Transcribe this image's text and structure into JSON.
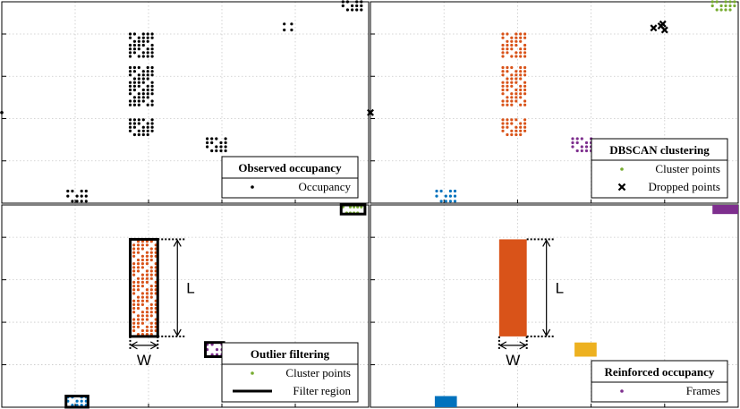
{
  "colors": {
    "black": "#000000",
    "orange": "#d95319",
    "green": "#77ac30",
    "purple": "#7e2f8e",
    "blue": "#0072bd",
    "yellow": "#edb120",
    "grid": "#c8c8c8"
  },
  "chart_data": [
    {
      "type": "scatter",
      "panel": "top-left",
      "legend": {
        "title": "Observed occupancy",
        "placement": "bottom-right",
        "entries": [
          {
            "label": "Occupancy",
            "marker": "dot",
            "color": "black"
          }
        ]
      },
      "xlim": [
        0,
        1
      ],
      "ylim": [
        0,
        1
      ],
      "grid": true,
      "clusters": [
        {
          "color": "black",
          "x": [
            0.35,
            0.41
          ],
          "y": [
            0.34,
            0.84
          ],
          "rows": 28,
          "cols": 6,
          "gaps": [
            [
              0.42,
              0.47
            ],
            [
              0.68,
              0.72
            ]
          ]
        },
        {
          "color": "black",
          "x": [
            0.56,
            0.61
          ],
          "y": [
            0.26,
            0.32
          ],
          "rows": 4,
          "cols": 5
        },
        {
          "color": "black",
          "x": [
            0.18,
            0.23
          ],
          "y": [
            0.01,
            0.06
          ],
          "rows": 3,
          "cols": 5
        },
        {
          "color": "black",
          "x": [
            0.93,
            0.98
          ],
          "y": [
            0.96,
            1.0
          ],
          "rows": 3,
          "cols": 5
        },
        {
          "color": "black",
          "x": [
            0.77,
            0.79
          ],
          "y": [
            0.86,
            0.89
          ],
          "rows": 2,
          "cols": 2
        }
      ],
      "points": [
        {
          "x": 0.0,
          "y": 0.45,
          "color": "black"
        }
      ]
    },
    {
      "type": "scatter",
      "panel": "top-right",
      "legend": {
        "title": "DBSCAN clustering",
        "placement": "bottom-right",
        "entries": [
          {
            "label": "Cluster points",
            "marker": "dot",
            "color": "green"
          },
          {
            "label": "Dropped points",
            "marker": "cross",
            "color": "black"
          }
        ]
      },
      "xlim": [
        0,
        1
      ],
      "ylim": [
        0,
        1
      ],
      "grid": true,
      "clusters": [
        {
          "color": "orange",
          "x": [
            0.36,
            0.42
          ],
          "y": [
            0.34,
            0.84
          ],
          "rows": 28,
          "cols": 6,
          "gaps": [
            [
              0.42,
              0.47
            ],
            [
              0.68,
              0.72
            ]
          ]
        },
        {
          "color": "purple",
          "x": [
            0.55,
            0.6
          ],
          "y": [
            0.26,
            0.32
          ],
          "rows": 4,
          "cols": 5
        },
        {
          "color": "blue",
          "x": [
            0.18,
            0.23
          ],
          "y": [
            0.01,
            0.06
          ],
          "rows": 3,
          "cols": 5
        },
        {
          "color": "green",
          "x": [
            0.93,
            0.99
          ],
          "y": [
            0.96,
            1.0
          ],
          "rows": 3,
          "cols": 6
        }
      ],
      "dropped": [
        {
          "x": 0.77,
          "y": 0.87
        },
        {
          "x": 0.79,
          "y": 0.88
        },
        {
          "x": 0.795,
          "y": 0.89
        },
        {
          "x": 0.8,
          "y": 0.86
        },
        {
          "x": 0.0,
          "y": 0.45
        }
      ]
    },
    {
      "type": "scatter",
      "panel": "bottom-left",
      "legend": {
        "title": "Outlier filtering",
        "placement": "bottom-right",
        "entries": [
          {
            "label": "Cluster points",
            "marker": "dot",
            "color": "green"
          },
          {
            "label": "Filter region",
            "marker": "line",
            "color": "black"
          }
        ]
      },
      "xlim": [
        0,
        1
      ],
      "ylim": [
        0,
        1
      ],
      "grid": true,
      "clusters": [
        {
          "color": "orange",
          "x": [
            0.36,
            0.42
          ],
          "y": [
            0.36,
            0.82
          ],
          "rows": 26,
          "cols": 6
        },
        {
          "color": "purple",
          "x": [
            0.56,
            0.6
          ],
          "y": [
            0.26,
            0.31
          ],
          "rows": 3,
          "cols": 4
        },
        {
          "color": "blue",
          "x": [
            0.18,
            0.23
          ],
          "y": [
            0.01,
            0.05
          ],
          "rows": 3,
          "cols": 5
        },
        {
          "color": "green",
          "x": [
            0.93,
            0.98
          ],
          "y": [
            0.96,
            0.99
          ],
          "rows": 2,
          "cols": 6
        }
      ],
      "filter_regions": [
        {
          "x": [
            0.35,
            0.425
          ],
          "y": [
            0.35,
            0.83
          ]
        },
        {
          "x": [
            0.555,
            0.605
          ],
          "y": [
            0.25,
            0.32
          ]
        },
        {
          "x": [
            0.175,
            0.235
          ],
          "y": [
            0.0,
            0.055
          ]
        },
        {
          "x": [
            0.925,
            0.99
          ],
          "y": [
            0.955,
            1.0
          ]
        }
      ],
      "dimension_labels": {
        "length": "L",
        "width": "W"
      }
    },
    {
      "type": "heatmap",
      "panel": "bottom-right",
      "legend": {
        "title": "Reinforced occupancy",
        "placement": "bottom-right",
        "entries": [
          {
            "label": "Frames",
            "marker": "dot",
            "color": "purple"
          }
        ]
      },
      "xlim": [
        0,
        1
      ],
      "ylim": [
        0,
        1
      ],
      "grid": true,
      "rectangles": [
        {
          "color": "orange",
          "x": [
            0.35,
            0.425
          ],
          "y": [
            0.35,
            0.83
          ]
        },
        {
          "color": "yellow",
          "x": [
            0.555,
            0.615
          ],
          "y": [
            0.25,
            0.32
          ]
        },
        {
          "color": "blue",
          "x": [
            0.175,
            0.235
          ],
          "y": [
            0.0,
            0.055
          ]
        },
        {
          "color": "purple",
          "x": [
            0.93,
            1.0
          ],
          "y": [
            0.955,
            1.0
          ]
        }
      ],
      "dimension_labels": {
        "length": "L",
        "width": "W"
      }
    }
  ]
}
